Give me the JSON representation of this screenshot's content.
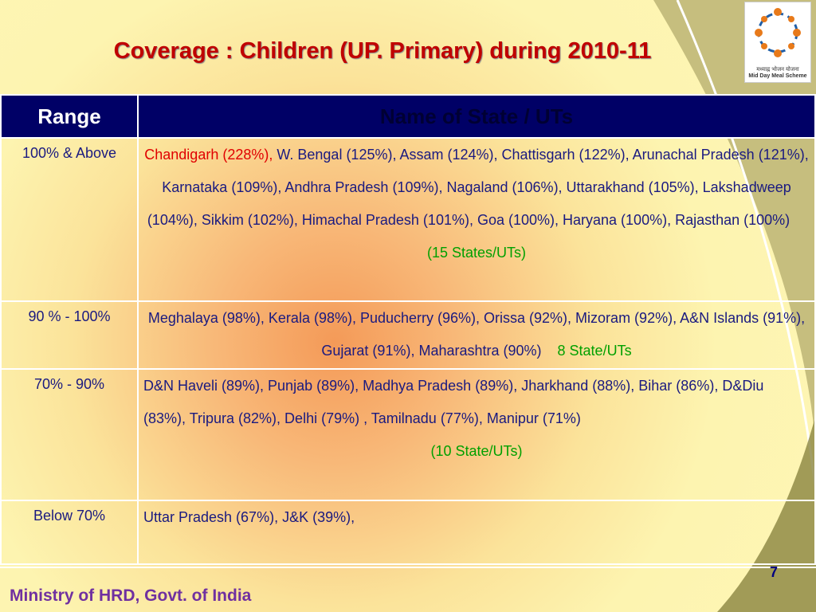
{
  "header": {
    "title": "Coverage : Children (UP. Primary) during 2010-11",
    "logo_caption": "Mid Day Meal Scheme",
    "logo_hindi": "मध्याह्न भोजन योजना"
  },
  "table": {
    "columns": [
      "Range",
      "Name of State / UTs"
    ],
    "rows": [
      {
        "range": "100% & Above",
        "highlight": "Chandigarh (228%),",
        "states": "W. Bengal (125%), Assam (124%), Chattisgarh (122%), Arunachal Pradesh (121%),  Karnataka (109%), Andhra Pradesh (109%), Nagaland (106%), Uttarakhand (105%), Lakshadweep (104%), Sikkim (102%), Himachal Pradesh (101%), Goa (100%), Haryana (100%), Rajasthan (100%)",
        "count": "(15 States/UTs)"
      },
      {
        "range": "90 % - 100%",
        "states": "Meghalaya (98%), Kerala (98%), Puducherry (96%), Orissa (92%), Mizoram (92%), A&N Islands (91%), Gujarat (91%), Maharashtra (90%)",
        "count": "8 State/UTs"
      },
      {
        "range": "70% - 90%",
        "states": "D&N Haveli (89%), Punjab (89%), Madhya Pradesh (89%), Jharkhand (88%), Bihar (86%), D&Diu (83%), Tripura (82%), Delhi (79%) , Tamilnadu (77%), Manipur (71%)",
        "count": "(10 State/UTs)"
      },
      {
        "range": "Below 70%",
        "states": "Uttar Pradesh (67%), J&K (39%),"
      }
    ]
  },
  "footer": {
    "text": "Ministry of HRD, Govt. of India",
    "page": "7"
  }
}
